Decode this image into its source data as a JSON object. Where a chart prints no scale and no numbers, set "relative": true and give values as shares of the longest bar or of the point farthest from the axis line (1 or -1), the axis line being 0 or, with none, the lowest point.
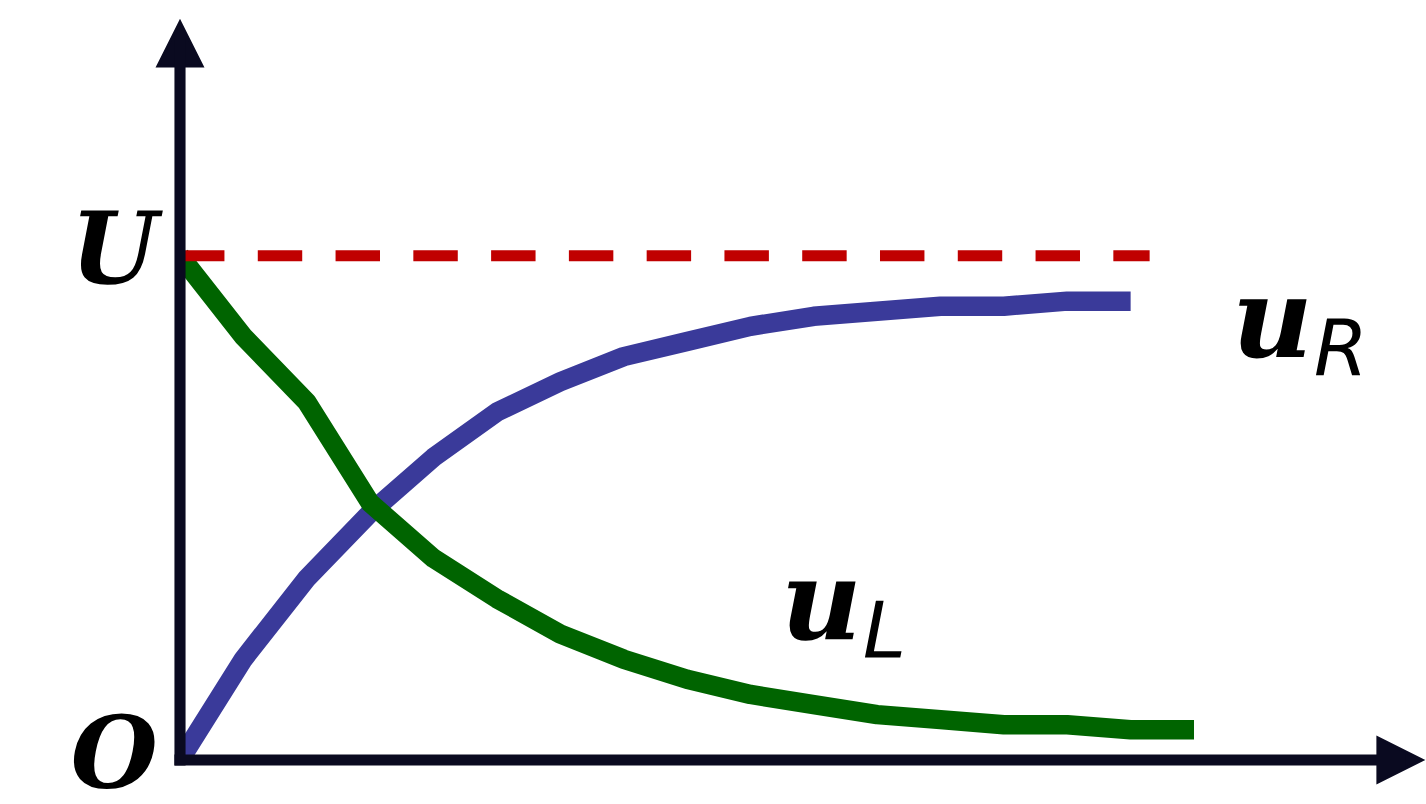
{
  "chart_data": {
    "type": "line",
    "categories": [
      null,
      null,
      null,
      null,
      null,
      null,
      null,
      null,
      null,
      null,
      null,
      null,
      null,
      null,
      null,
      null,
      null
    ],
    "series": [
      {
        "name": "u$_{R}$",
        "color": "#3a3a9a",
        "values": [
          0,
          0.2,
          0.36,
          0.49,
          0.6,
          0.69,
          0.75,
          0.8,
          0.83,
          0.86,
          0.88,
          0.89,
          0.9,
          0.9,
          0.91,
          0.91,
          null
        ]
      },
      {
        "name": "u$_{L}$",
        "color": "#006400",
        "values": [
          1,
          0.84,
          0.71,
          0.51,
          0.4,
          0.32,
          0.25,
          0.2,
          0.16,
          0.13,
          0.11,
          0.09,
          0.08,
          0.07,
          0.07,
          0.06,
          0.06
        ]
      }
    ],
    "relative": true,
    "ref_lines": [
      {
        "axis": "y",
        "value": 1,
        "label": "U",
        "color": "#c00000",
        "line_style": "dashed"
      }
    ],
    "annotations": [
      "O"
    ],
    "legend": false,
    "marker": "none",
    "line_style": "solid"
  }
}
